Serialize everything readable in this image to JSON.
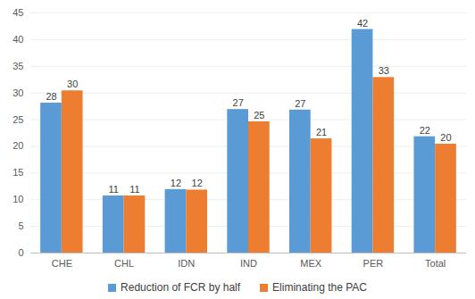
{
  "chart_data": {
    "type": "bar",
    "categories": [
      "CHE",
      "CHL",
      "IDN",
      "IND",
      "MEX",
      "PER",
      "Total"
    ],
    "series": [
      {
        "name": "Reduction of FCR by half",
        "color": "#5B9BD5",
        "values": [
          28.1,
          10.7,
          11.9,
          26.9,
          26.8,
          41.9,
          21.8
        ],
        "value_labels": [
          "28",
          "11",
          "12",
          "27",
          "27",
          "42",
          "22"
        ]
      },
      {
        "name": "Eliminating the PAC",
        "color": "#ED7D31",
        "values": [
          30.4,
          10.7,
          11.8,
          24.6,
          21.4,
          32.9,
          20.4
        ],
        "value_labels": [
          "30",
          "11",
          "12",
          "25",
          "21",
          "33",
          "20"
        ]
      }
    ],
    "ylim": [
      0,
      45
    ],
    "yticks": [
      0,
      5,
      10,
      15,
      20,
      25,
      30,
      35,
      40,
      45
    ],
    "grid": true,
    "legend": "bottom",
    "data_labels": true
  }
}
